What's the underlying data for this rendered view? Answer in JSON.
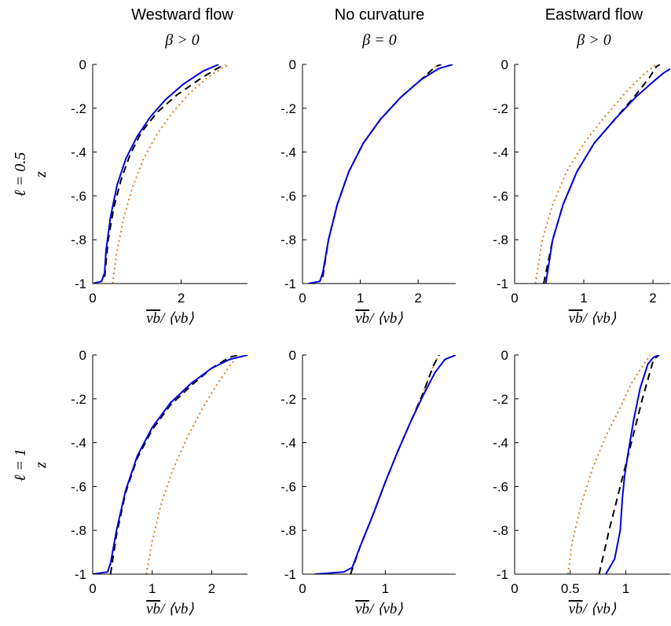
{
  "column_titles": [
    {
      "name": "Westward flow",
      "beta": "β > 0"
    },
    {
      "name": "No curvature",
      "beta": "β = 0"
    },
    {
      "name": "Eastward flow",
      "beta": "β > 0"
    }
  ],
  "row_labels": [
    {
      "ell": "ℓ = 0.5",
      "z": "z"
    },
    {
      "ell": "ℓ = 1",
      "z": "z"
    }
  ],
  "xlabel_main": "vb",
  "xlabel_rest": "/ ⟨vb⟩",
  "colors": {
    "solid": "#0000dd",
    "dashed": "#000000",
    "dotted": "#e07a1f"
  },
  "chart_data": [
    {
      "type": "line",
      "row": 0,
      "col": 0,
      "xlim": [
        0,
        3.5
      ],
      "ylim": [
        -1,
        0
      ],
      "xticks": [
        0,
        2
      ],
      "yticks": [
        0,
        -0.2,
        -0.4,
        -0.6,
        -0.8,
        -1
      ],
      "series": [
        {
          "style": "solid",
          "x": [
            0,
            0.2,
            0.27,
            0.3,
            0.4,
            0.55,
            0.75,
            1.0,
            1.3,
            1.65,
            2.05,
            2.5,
            2.85
          ],
          "y": [
            -1,
            -0.99,
            -0.95,
            -0.85,
            -0.7,
            -0.55,
            -0.43,
            -0.33,
            -0.24,
            -0.16,
            -0.09,
            -0.03,
            0
          ]
        },
        {
          "style": "dashed",
          "x": [
            0.27,
            0.35,
            0.48,
            0.65,
            0.85,
            1.1,
            1.45,
            1.9,
            2.4,
            2.8,
            3.0
          ],
          "y": [
            -0.97,
            -0.8,
            -0.65,
            -0.52,
            -0.41,
            -0.31,
            -0.22,
            -0.14,
            -0.07,
            -0.02,
            0
          ]
        },
        {
          "style": "dotted",
          "x": [
            0.45,
            0.55,
            0.7,
            0.9,
            1.15,
            1.45,
            1.8,
            2.2,
            2.6,
            2.9,
            3.1
          ],
          "y": [
            -1,
            -0.85,
            -0.7,
            -0.56,
            -0.43,
            -0.32,
            -0.22,
            -0.13,
            -0.06,
            -0.02,
            0
          ]
        }
      ]
    },
    {
      "type": "line",
      "row": 0,
      "col": 1,
      "xlim": [
        0,
        2.65
      ],
      "ylim": [
        -1,
        0
      ],
      "xticks": [
        0,
        1,
        2
      ],
      "yticks": [
        0,
        -0.2,
        -0.4,
        -0.6,
        -0.8,
        -1
      ],
      "series": [
        {
          "style": "solid",
          "x": [
            0.1,
            0.3,
            0.35,
            0.45,
            0.6,
            0.8,
            1.05,
            1.35,
            1.7,
            2.05,
            2.35,
            2.6
          ],
          "y": [
            -1,
            -0.99,
            -0.95,
            -0.8,
            -0.64,
            -0.49,
            -0.36,
            -0.25,
            -0.15,
            -0.07,
            -0.02,
            0
          ]
        },
        {
          "style": "dashed",
          "x": [
            0.35,
            0.45,
            0.6,
            0.8,
            1.05,
            1.35,
            1.7,
            2.05,
            2.3,
            2.4
          ],
          "y": [
            -0.97,
            -0.8,
            -0.64,
            -0.49,
            -0.36,
            -0.25,
            -0.15,
            -0.07,
            -0.01,
            0
          ]
        },
        {
          "style": "dotted",
          "x": [
            0.35,
            0.45,
            0.6,
            0.8,
            1.05,
            1.35,
            1.7,
            2.05,
            2.3,
            2.4
          ],
          "y": [
            -0.97,
            -0.8,
            -0.64,
            -0.49,
            -0.36,
            -0.25,
            -0.15,
            -0.07,
            -0.01,
            0
          ]
        }
      ]
    },
    {
      "type": "line",
      "row": 0,
      "col": 2,
      "xlim": [
        0,
        2.25
      ],
      "ylim": [
        -1,
        0
      ],
      "xticks": [
        0,
        1,
        2
      ],
      "yticks": [
        0,
        -0.2,
        -0.4,
        -0.6,
        -0.8,
        -1
      ],
      "series": [
        {
          "style": "solid",
          "x": [
            0.45,
            0.55,
            0.7,
            0.9,
            1.15,
            1.45,
            1.75,
            2.0,
            2.15,
            2.25
          ],
          "y": [
            -1,
            -0.8,
            -0.64,
            -0.49,
            -0.36,
            -0.25,
            -0.15,
            -0.08,
            -0.04,
            -0.02
          ]
        },
        {
          "style": "dashed",
          "x": [
            0.42,
            0.55,
            0.7,
            0.9,
            1.15,
            1.45,
            1.75,
            1.95,
            2.05,
            2.1
          ],
          "y": [
            -1,
            -0.8,
            -0.64,
            -0.49,
            -0.36,
            -0.25,
            -0.14,
            -0.06,
            -0.01,
            0
          ]
        },
        {
          "style": "dotted",
          "x": [
            0.3,
            0.4,
            0.55,
            0.75,
            1.0,
            1.3,
            1.6,
            1.85,
            2.05
          ],
          "y": [
            -1,
            -0.8,
            -0.64,
            -0.49,
            -0.36,
            -0.24,
            -0.13,
            -0.05,
            0
          ]
        }
      ]
    },
    {
      "type": "line",
      "row": 1,
      "col": 0,
      "xlim": [
        0,
        2.6
      ],
      "ylim": [
        -1,
        0
      ],
      "xticks": [
        0,
        1,
        2
      ],
      "yticks": [
        0,
        -0.2,
        -0.4,
        -0.6,
        -0.8,
        -1
      ],
      "series": [
        {
          "style": "solid",
          "x": [
            0,
            0.25,
            0.3,
            0.4,
            0.55,
            0.75,
            1.0,
            1.3,
            1.65,
            2.0,
            2.3,
            2.6
          ],
          "y": [
            -1,
            -0.99,
            -0.95,
            -0.8,
            -0.62,
            -0.46,
            -0.33,
            -0.22,
            -0.13,
            -0.06,
            -0.02,
            0
          ]
        },
        {
          "style": "dashed",
          "x": [
            0.3,
            0.4,
            0.55,
            0.75,
            1.0,
            1.3,
            1.65,
            2.0,
            2.3,
            2.45
          ],
          "y": [
            -1,
            -0.82,
            -0.63,
            -0.47,
            -0.34,
            -0.23,
            -0.14,
            -0.06,
            -0.01,
            0
          ]
        },
        {
          "style": "dotted",
          "x": [
            0.9,
            1.0,
            1.15,
            1.35,
            1.6,
            1.85,
            2.1,
            2.3,
            2.45
          ],
          "y": [
            -1,
            -0.85,
            -0.68,
            -0.52,
            -0.37,
            -0.24,
            -0.13,
            -0.05,
            0
          ]
        }
      ]
    },
    {
      "type": "line",
      "row": 1,
      "col": 1,
      "xlim": [
        0,
        1.85
      ],
      "ylim": [
        -1,
        0
      ],
      "xticks": [
        0,
        1
      ],
      "yticks": [
        0,
        -0.2,
        -0.4,
        -0.6,
        -0.8,
        -1
      ],
      "series": [
        {
          "style": "solid",
          "x": [
            0.15,
            0.5,
            0.6,
            0.7,
            0.85,
            1.0,
            1.15,
            1.3,
            1.45,
            1.6,
            1.72,
            1.85
          ],
          "y": [
            -1,
            -0.99,
            -0.97,
            -0.87,
            -0.73,
            -0.58,
            -0.44,
            -0.31,
            -0.19,
            -0.08,
            -0.02,
            0
          ]
        },
        {
          "style": "dashed",
          "x": [
            0.58,
            0.7,
            0.85,
            1.0,
            1.15,
            1.3,
            1.45,
            1.58,
            1.65
          ],
          "y": [
            -1,
            -0.87,
            -0.73,
            -0.58,
            -0.44,
            -0.31,
            -0.18,
            -0.05,
            0
          ]
        },
        {
          "style": "dotted",
          "x": [
            0.58,
            0.7,
            0.85,
            1.0,
            1.15,
            1.3,
            1.45,
            1.58,
            1.65
          ],
          "y": [
            -1,
            -0.87,
            -0.73,
            -0.58,
            -0.44,
            -0.31,
            -0.18,
            -0.05,
            0
          ]
        }
      ]
    },
    {
      "type": "line",
      "row": 1,
      "col": 2,
      "xlim": [
        0,
        1.4
      ],
      "ylim": [
        -1,
        0
      ],
      "xticks": [
        0,
        0.5,
        1
      ],
      "yticks": [
        0,
        -0.2,
        -0.4,
        -0.6,
        -0.8,
        -1
      ],
      "series": [
        {
          "style": "solid",
          "x": [
            0.82,
            0.9,
            0.95,
            0.97,
            0.99,
            1.02,
            1.07,
            1.13,
            1.2,
            1.25,
            1.3
          ],
          "y": [
            -1,
            -0.93,
            -0.8,
            -0.65,
            -0.55,
            -0.45,
            -0.3,
            -0.15,
            -0.04,
            -0.01,
            0
          ]
        },
        {
          "style": "dashed",
          "x": [
            0.76,
            0.85,
            0.95,
            1.05,
            1.15,
            1.25,
            1.3
          ],
          "y": [
            -1,
            -0.8,
            -0.6,
            -0.4,
            -0.2,
            -0.02,
            0
          ]
        },
        {
          "style": "dotted",
          "x": [
            0.48,
            0.52,
            0.6,
            0.7,
            0.82,
            0.95,
            1.05,
            1.15,
            1.22
          ],
          "y": [
            -1,
            -0.85,
            -0.68,
            -0.52,
            -0.37,
            -0.24,
            -0.13,
            -0.05,
            0
          ]
        }
      ]
    }
  ]
}
